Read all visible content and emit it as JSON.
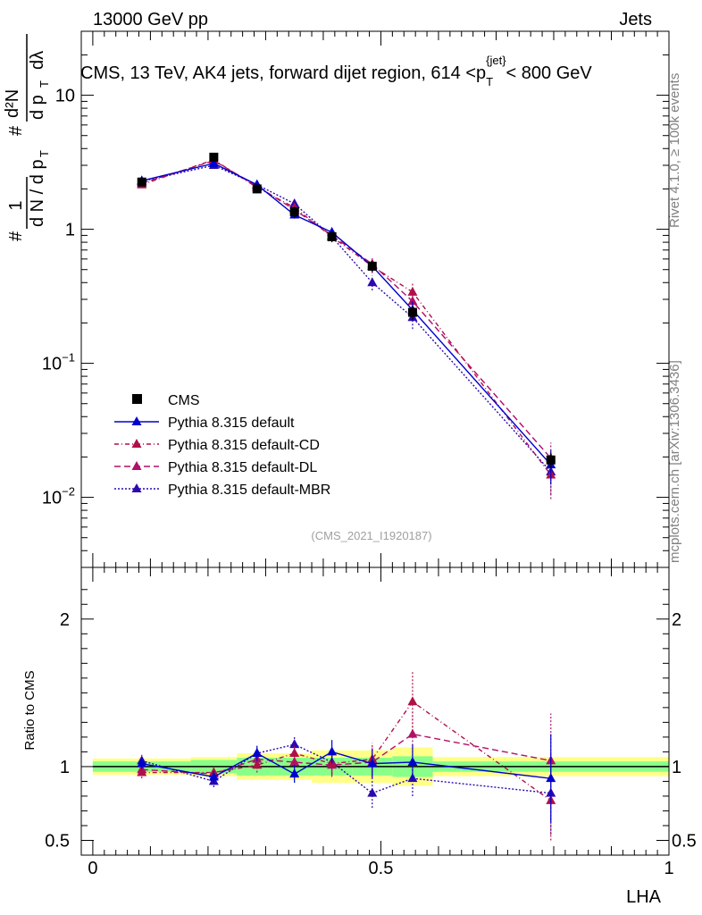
{
  "header": {
    "left": "13000 GeV pp",
    "right": "Jets"
  },
  "side_labels": {
    "rivet": "Rivet 4.1.0, ≥ 100k events",
    "mcplots": "mcplots.cern.ch [arXiv:1306.3436]"
  },
  "colors": {
    "data": "#000000",
    "default": "#0000cc",
    "cd": "#b0104a",
    "dl": "#b0106a",
    "mbr": "#2c08b0",
    "band_inner": "#88ff88",
    "band_outer": "#ffff88"
  },
  "chart_data": [
    {
      "type": "line",
      "title": "CMS, 13 TeV, AK4 jets, forward dijet region, 614 <p_T^{jet}< 800 GeV",
      "title_parts": {
        "main": "CMS, 13 TeV, AK4 jets, forward dijet region, 614 <p",
        "sub": "T",
        "sup": "{jet}",
        "tail": "< 800 GeV"
      },
      "ylabel": "1/(dN/dp_T) d²N/(dp_T dλ)",
      "ylabel_parts": {
        "hash": "#",
        "one": "1",
        "dn": "d N / d p",
        "d2n": "d²N",
        "dpt": "d p",
        "dlambda": "dλ",
        "t": "T"
      },
      "yscale": "log",
      "ylim": [
        0.003,
        30
      ],
      "xlim": [
        -0.02,
        1.0
      ],
      "yticks": [
        {
          "value": 0.01,
          "base": "10",
          "exp": "−2"
        },
        {
          "value": 0.1,
          "base": "10",
          "exp": "−1"
        },
        {
          "value": 1,
          "base": "1",
          "exp": ""
        },
        {
          "value": 10,
          "base": "10",
          "exp": ""
        }
      ],
      "analysis_id": "(CMS_2021_I1920187)",
      "x": [
        0.085,
        0.21,
        0.285,
        0.35,
        0.415,
        0.485,
        0.555,
        0.795
      ],
      "series": [
        {
          "name": "CMS",
          "style": "data",
          "values": [
            2.25,
            3.45,
            2.0,
            1.35,
            0.88,
            0.53,
            0.24,
            0.019
          ],
          "errors": [
            0.12,
            0.18,
            0.14,
            0.12,
            0.08,
            0.05,
            0.03,
            0.0025
          ]
        },
        {
          "name": "Pythia 8.315 default",
          "style": "default",
          "values": [
            2.3,
            3.1,
            2.15,
            1.28,
            0.95,
            0.53,
            0.25,
            0.0175
          ],
          "errors": [
            0.1,
            0.15,
            0.1,
            0.08,
            0.06,
            0.05,
            0.04,
            0.005
          ]
        },
        {
          "name": "Pythia 8.315 default-CD",
          "style": "cd",
          "values": [
            2.15,
            3.3,
            2.05,
            1.45,
            0.88,
            0.53,
            0.34,
            0.0147
          ],
          "errors": [
            0.1,
            0.15,
            0.1,
            0.1,
            0.07,
            0.06,
            0.06,
            0.005
          ]
        },
        {
          "name": "Pythia 8.315 default-DL",
          "style": "dl",
          "values": [
            2.2,
            3.25,
            2.1,
            1.4,
            0.9,
            0.55,
            0.29,
            0.0196
          ],
          "errors": [
            0.1,
            0.15,
            0.1,
            0.1,
            0.07,
            0.06,
            0.05,
            0.006
          ]
        },
        {
          "name": "Pythia 8.315 default-MBR",
          "style": "mbr",
          "values": [
            2.28,
            3.0,
            2.15,
            1.55,
            0.88,
            0.4,
            0.22,
            0.0155
          ],
          "errors": [
            0.1,
            0.15,
            0.1,
            0.1,
            0.07,
            0.05,
            0.04,
            0.005
          ]
        }
      ]
    },
    {
      "type": "line",
      "title": "",
      "ylabel": "Ratio to CMS",
      "xlabel": "LHA",
      "ylim": [
        0.4,
        2.35
      ],
      "yticks": [
        0.5,
        1,
        2
      ],
      "ytick_labels": [
        "0.5",
        "1",
        "2"
      ],
      "xticks": [
        0,
        0.5,
        1
      ],
      "xtick_labels": [
        "0",
        "0.5",
        "1"
      ],
      "band_bins": [
        {
          "x0": 0.0,
          "x1": 0.17,
          "inner": 0.035,
          "outer": 0.055
        },
        {
          "x0": 0.17,
          "x1": 0.25,
          "inner": 0.045,
          "outer": 0.065
        },
        {
          "x0": 0.25,
          "x1": 0.32,
          "inner": 0.06,
          "outer": 0.09
        },
        {
          "x0": 0.32,
          "x1": 0.38,
          "inner": 0.06,
          "outer": 0.09
        },
        {
          "x0": 0.38,
          "x1": 0.45,
          "inner": 0.06,
          "outer": 0.11
        },
        {
          "x0": 0.45,
          "x1": 0.52,
          "inner": 0.06,
          "outer": 0.11
        },
        {
          "x0": 0.52,
          "x1": 0.59,
          "inner": 0.07,
          "outer": 0.13
        },
        {
          "x0": 0.59,
          "x1": 1.0,
          "inner": 0.035,
          "outer": 0.065
        }
      ],
      "x": [
        0.085,
        0.21,
        0.285,
        0.35,
        0.415,
        0.485,
        0.555,
        0.795
      ],
      "series": [
        {
          "name": "Pythia 8.315 default",
          "style": "default",
          "values": [
            1.02,
            0.93,
            1.09,
            0.95,
            1.1,
            1.02,
            1.03,
            0.92
          ],
          "errors": [
            0.04,
            0.04,
            0.05,
            0.06,
            0.08,
            0.1,
            0.12,
            0.3
          ]
        },
        {
          "name": "Pythia 8.315 default-CD",
          "style": "cd",
          "values": [
            0.96,
            0.96,
            1.01,
            1.09,
            1.02,
            1.05,
            1.44,
            0.77
          ],
          "errors": [
            0.04,
            0.04,
            0.05,
            0.06,
            0.08,
            0.11,
            0.2,
            0.27
          ]
        },
        {
          "name": "Pythia 8.315 default-DL",
          "style": "dl",
          "values": [
            0.98,
            0.95,
            1.05,
            1.03,
            1.01,
            1.03,
            1.22,
            1.04
          ],
          "errors": [
            0.04,
            0.04,
            0.05,
            0.06,
            0.08,
            0.1,
            0.15,
            0.32
          ]
        },
        {
          "name": "Pythia 8.315 default-MBR",
          "style": "mbr",
          "values": [
            1.04,
            0.9,
            1.09,
            1.15,
            1.03,
            0.82,
            0.92,
            0.82
          ],
          "errors": [
            0.04,
            0.04,
            0.05,
            0.06,
            0.08,
            0.1,
            0.12,
            0.28
          ]
        }
      ]
    }
  ]
}
